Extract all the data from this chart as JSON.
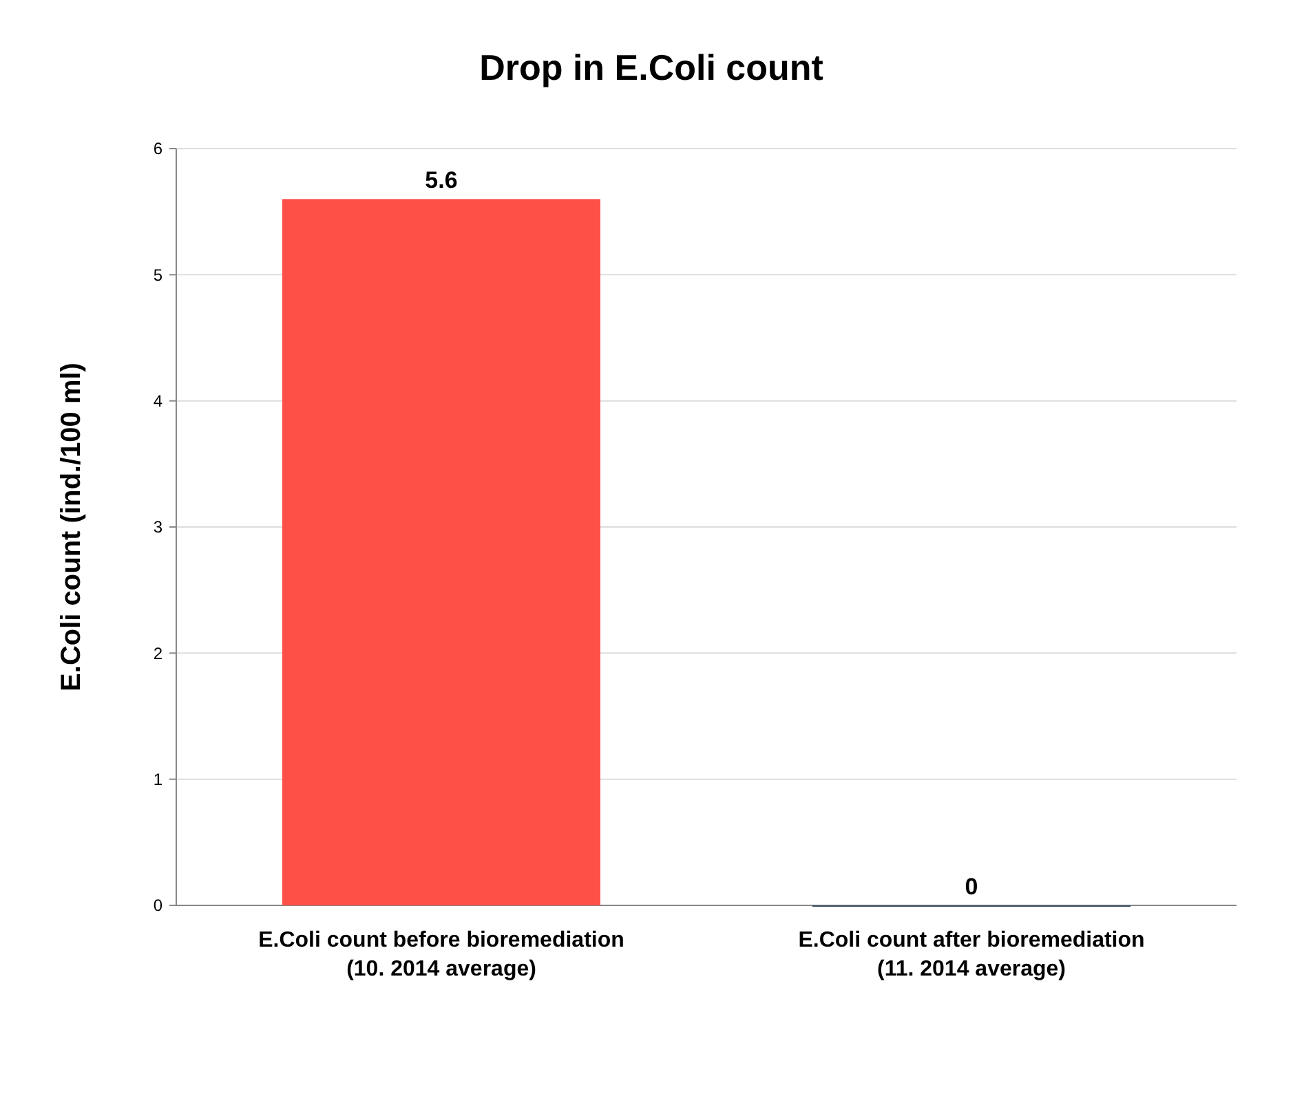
{
  "chart_data": {
    "type": "bar",
    "title": "Drop in E.Coli count",
    "ylabel": "E.Coli count (ind./100 ml)",
    "categories": [
      "E.Coli count before bioremediation\n(10. 2014 average)",
      "E.Coli count after bioremediation\n(11. 2014 average)"
    ],
    "values": [
      5.6,
      0
    ],
    "colors": [
      "#ff5048",
      "#3d5068"
    ],
    "ylim": [
      0,
      6
    ],
    "yticks": [
      0,
      1,
      2,
      3,
      4,
      5,
      6
    ],
    "grid": "y",
    "data_labels": true
  }
}
